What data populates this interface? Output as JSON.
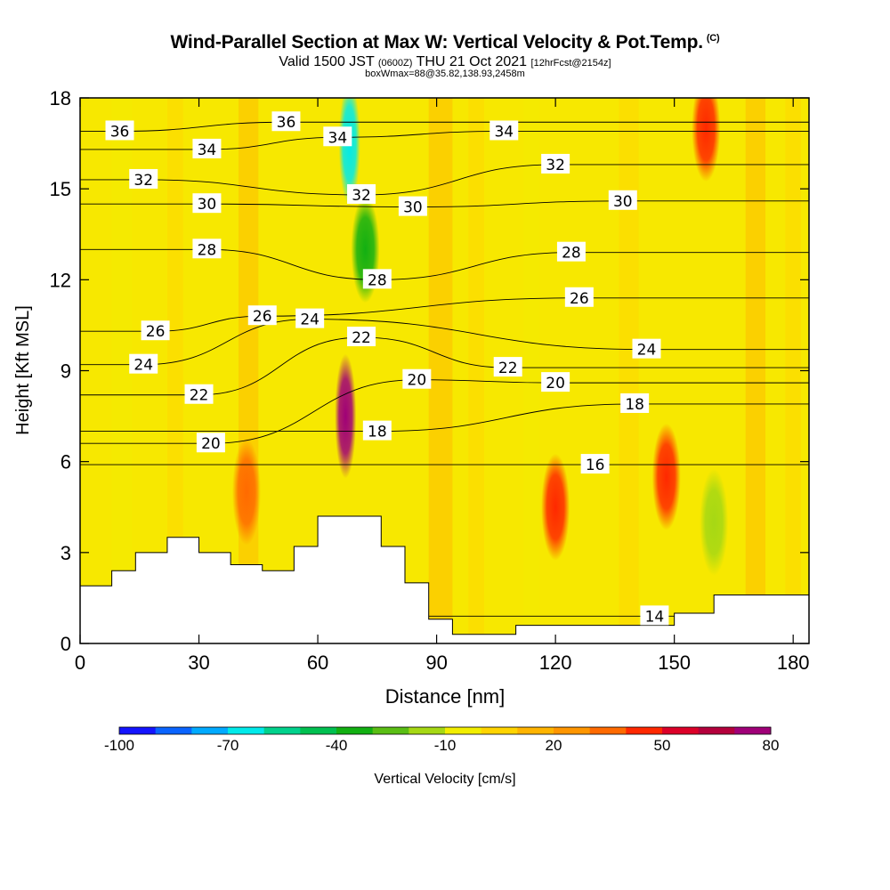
{
  "header": {
    "title": "Wind-Parallel Section at Max W: Vertical Velocity & Pot.Temp.",
    "copyright": "(C)",
    "valid_prefix": "Valid 1500 JST",
    "valid_z": "(0600Z)",
    "valid_date": "THU 21 Oct 2021",
    "valid_fcst": "[12hrFcst@2154z]",
    "box": "boxWmax=88@35.82,138.93,2458m"
  },
  "chart_data": {
    "type": "heatmap",
    "xlabel": "Distance [nm]",
    "ylabel": "Height [Kft MSL]",
    "xlim": [
      0,
      184
    ],
    "ylim": [
      0,
      18
    ],
    "x_ticks": [
      0,
      30,
      60,
      90,
      120,
      150,
      180
    ],
    "y_ticks": [
      0,
      3,
      6,
      9,
      12,
      15,
      18
    ],
    "colorbar": {
      "title": "Vertical Velocity [cm/s]",
      "ticks": [
        -100,
        -70,
        -40,
        -10,
        20,
        50,
        80
      ],
      "bins": [
        -100,
        -90,
        -80,
        -70,
        -60,
        -50,
        -40,
        -30,
        -20,
        -10,
        0,
        10,
        20,
        30,
        40,
        50,
        60,
        70,
        80
      ],
      "colors": [
        "#1414ff",
        "#0a64ff",
        "#00aaff",
        "#00eaea",
        "#00d28c",
        "#00c050",
        "#12b012",
        "#5abe14",
        "#a6d814",
        "#f2ee00",
        "#ffd400",
        "#ffb400",
        "#ff9600",
        "#ff6a00",
        "#ff2800",
        "#dc0028",
        "#b4003c",
        "#a00078"
      ]
    },
    "terrain_kft": [
      [
        0,
        1.9
      ],
      [
        8,
        2.4
      ],
      [
        14,
        3.0
      ],
      [
        22,
        3.5
      ],
      [
        30,
        3.0
      ],
      [
        38,
        2.6
      ],
      [
        46,
        2.4
      ],
      [
        54,
        3.2
      ],
      [
        60,
        4.2
      ],
      [
        68,
        4.2
      ],
      [
        76,
        3.2
      ],
      [
        82,
        2.0
      ],
      [
        88,
        0.8
      ],
      [
        94,
        0.3
      ],
      [
        104,
        0.3
      ],
      [
        110,
        0.6
      ],
      [
        120,
        0.6
      ],
      [
        134,
        0.6
      ],
      [
        146,
        0.6
      ],
      [
        150,
        1.0
      ],
      [
        160,
        1.6
      ],
      [
        184,
        1.6
      ]
    ],
    "vv_features": [
      {
        "x": 67,
        "z": 7.5,
        "value": 80
      },
      {
        "x": 68,
        "z": 16.5,
        "value": -70
      },
      {
        "x": 72,
        "z": 13.0,
        "value": -40
      },
      {
        "x": 120,
        "z": 4.5,
        "value": 45
      },
      {
        "x": 148,
        "z": 5.5,
        "value": 45
      },
      {
        "x": 158,
        "z": 17.0,
        "value": 45
      },
      {
        "x": 42,
        "z": 5.0,
        "value": 35
      },
      {
        "x": 160,
        "z": 4.0,
        "value": -15
      }
    ],
    "theta_series": [
      {
        "name": "14",
        "label": "14",
        "values": [
          [
            145,
            0.9
          ]
        ]
      },
      {
        "name": "16",
        "label": "16",
        "values": [
          [
            130,
            5.9
          ]
        ]
      },
      {
        "name": "18",
        "label": "18",
        "values": [
          [
            75,
            7.0
          ],
          [
            140,
            7.9
          ]
        ]
      },
      {
        "name": "20",
        "label": "20",
        "values": [
          [
            33,
            6.6
          ],
          [
            85,
            8.7
          ],
          [
            120,
            8.6
          ]
        ]
      },
      {
        "name": "22",
        "label": "22",
        "values": [
          [
            30,
            8.2
          ],
          [
            71,
            10.1
          ],
          [
            108,
            9.1
          ]
        ]
      },
      {
        "name": "24",
        "label": "24",
        "values": [
          [
            16,
            9.2
          ],
          [
            58,
            10.7
          ],
          [
            143,
            9.7
          ]
        ]
      },
      {
        "name": "26",
        "label": "26",
        "values": [
          [
            19,
            10.3
          ],
          [
            46,
            10.8
          ],
          [
            126,
            11.4
          ]
        ]
      },
      {
        "name": "28",
        "label": "28",
        "values": [
          [
            32,
            13.0
          ],
          [
            75,
            12.0
          ],
          [
            124,
            12.9
          ]
        ]
      },
      {
        "name": "30",
        "label": "30",
        "values": [
          [
            32,
            14.5
          ],
          [
            84,
            14.4
          ],
          [
            137,
            14.6
          ]
        ]
      },
      {
        "name": "32",
        "label": "32",
        "values": [
          [
            16,
            15.3
          ],
          [
            71,
            14.8
          ],
          [
            120,
            15.8
          ]
        ]
      },
      {
        "name": "34",
        "label": "34",
        "values": [
          [
            32,
            16.3
          ],
          [
            65,
            16.7
          ],
          [
            107,
            16.9
          ]
        ]
      },
      {
        "name": "36",
        "label": "36",
        "values": [
          [
            10,
            16.9
          ],
          [
            52,
            17.2
          ]
        ]
      }
    ]
  }
}
